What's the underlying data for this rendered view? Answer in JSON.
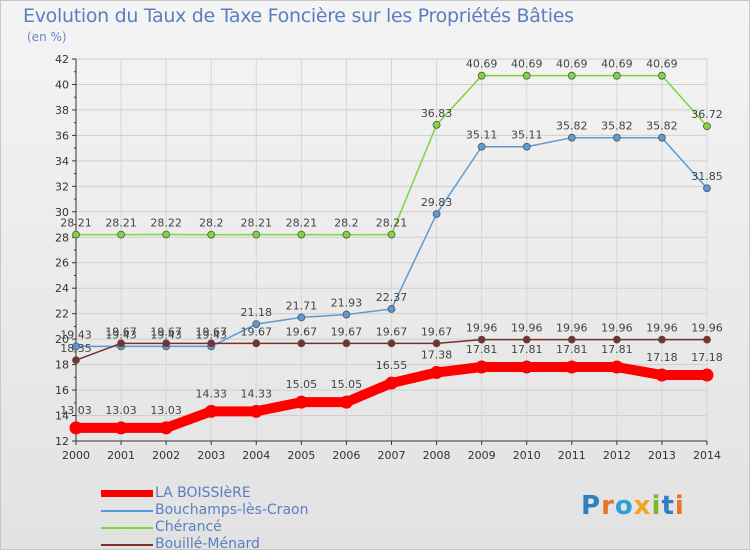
{
  "title": "Evolution du Taux de Taxe Foncière sur les Propriétés Bâties",
  "subtitle": "(en %)",
  "brand": "Proxiti",
  "colors": {
    "background": "#f0f0f0",
    "grid": "#cccccc",
    "axis": "#333333",
    "title": "#5a7fc0"
  },
  "legend": [
    {
      "label": "LA BOISSIèRE",
      "color": "#ff0000"
    },
    {
      "label": "Bouchamps-lès-Craon",
      "color": "#5b9bd5"
    },
    {
      "label": "Chérancé",
      "color": "#7fd63a"
    },
    {
      "label": "Bouillé-Ménard",
      "color": "#7b2e2e"
    }
  ],
  "chart_data": {
    "type": "line",
    "title": "Evolution du Taux de Taxe Foncière sur les Propriétés Bâties",
    "ylabel": "(en %)",
    "x": [
      "2000",
      "2001",
      "2002",
      "2003",
      "2004",
      "2005",
      "2006",
      "2007",
      "2008",
      "2009",
      "2010",
      "2011",
      "2012",
      "2013",
      "2014"
    ],
    "ylim": [
      12,
      42
    ],
    "yticks": [
      "12",
      "14",
      "16",
      "18",
      "20",
      "22",
      "24",
      "26",
      "28",
      "30",
      "32",
      "34",
      "36",
      "38",
      "40",
      "42"
    ],
    "grid": true,
    "series": [
      {
        "name": "LA BOISSIèRE",
        "color": "#ff0000",
        "values": [
          13.03,
          13.03,
          13.03,
          14.33,
          14.33,
          15.05,
          15.05,
          16.55,
          17.38,
          17.81,
          17.81,
          17.81,
          17.81,
          17.18,
          17.18
        ],
        "labels": [
          "13.03",
          "13.03",
          "13.03",
          "14.33",
          "14.33",
          "15.05",
          "15.05",
          "16.55",
          "17.38",
          "17.81",
          "17.81",
          "17.81",
          "17.81",
          "17.18",
          "17.18"
        ]
      },
      {
        "name": "Bouchamps-lès-Craon",
        "color": "#5b9bd5",
        "values": [
          19.43,
          19.43,
          19.43,
          19.43,
          21.18,
          21.71,
          21.93,
          22.37,
          29.83,
          35.11,
          35.11,
          35.82,
          35.82,
          35.82,
          31.85
        ],
        "labels": [
          "19.43",
          "19.43",
          "19.43",
          "19.43",
          "21.18",
          "21.71",
          "21.93",
          "22.37",
          "29.83",
          "35.11",
          "35.11",
          "35.82",
          "35.82",
          "35.82",
          "31.85"
        ]
      },
      {
        "name": "Chérancé",
        "color": "#7fd63a",
        "values": [
          28.21,
          28.21,
          28.22,
          28.2,
          28.21,
          28.21,
          28.2,
          28.21,
          36.83,
          40.69,
          40.69,
          40.69,
          40.69,
          40.69,
          36.72
        ],
        "labels": [
          "28.21",
          "28.21",
          "28.22",
          "28.2",
          "28.21",
          "28.21",
          "28.2",
          "28.21",
          "36.83",
          "40.69",
          "40.69",
          "40.69",
          "40.69",
          "40.69",
          "36.72"
        ]
      },
      {
        "name": "Bouillé-Ménard",
        "color": "#7b2e2e",
        "values": [
          18.35,
          19.67,
          19.67,
          19.67,
          19.67,
          19.67,
          19.67,
          19.67,
          19.67,
          19.96,
          19.96,
          19.96,
          19.96,
          19.96,
          19.96
        ],
        "labels": [
          "18.35",
          "19.67",
          "19.67",
          "19.67",
          "19.67",
          "19.67",
          "19.67",
          "19.67",
          "19.67",
          "19.96",
          "19.96",
          "19.96",
          "19.96",
          "19.96",
          "19.96"
        ]
      }
    ]
  }
}
